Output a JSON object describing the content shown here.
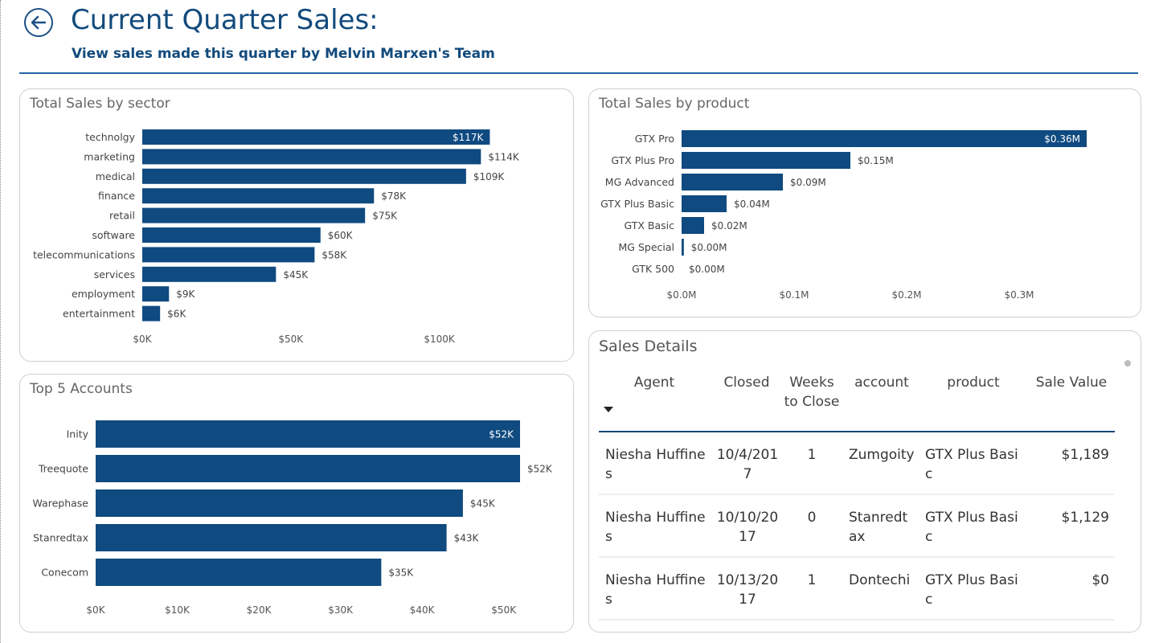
{
  "header": {
    "title": "Current Quarter Sales:",
    "subtitle": "View sales made this quarter by Melvin Marxen's Team"
  },
  "colors": {
    "bar": "#0f4a80",
    "accent": "#1f63a8"
  },
  "sector_card": {
    "title": "Total Sales by sector"
  },
  "product_card": {
    "title": "Total Sales by product"
  },
  "accounts_card": {
    "title": "Top 5 Accounts"
  },
  "details_card": {
    "title": "Sales Details",
    "columns": [
      "Agent",
      "Closed",
      "Weeks to Close",
      "account",
      "product",
      "Sale Value"
    ],
    "rows": [
      [
        "Niesha Huffines",
        "10/4/2017",
        "1",
        "Zumgoity",
        "GTX Plus Basic",
        "$1,189"
      ],
      [
        "Niesha Huffines",
        "10/10/2017",
        "0",
        "Stanredtax",
        "GTX Plus Basic",
        "$1,129"
      ],
      [
        "Niesha Huffines",
        "10/13/2017",
        "1",
        "Dontechi",
        "GTX Plus Basic",
        "$0"
      ]
    ]
  },
  "chart_data": [
    {
      "id": "sector",
      "type": "bar",
      "orientation": "horizontal",
      "categories": [
        "technolgy",
        "marketing",
        "medical",
        "finance",
        "retail",
        "software",
        "telecommunications",
        "services",
        "employment",
        "entertainment"
      ],
      "values": [
        117,
        114,
        109,
        78,
        75,
        60,
        58,
        45,
        9,
        6
      ],
      "labels": [
        "$117K",
        "$114K",
        "$109K",
        "$78K",
        "$75K",
        "$60K",
        "$58K",
        "$45K",
        "$9K",
        "$6K"
      ],
      "ticks": [
        0,
        50,
        100
      ],
      "tick_labels": [
        "$0K",
        "$50K",
        "$100K"
      ],
      "xlim": [
        0,
        125
      ]
    },
    {
      "id": "product",
      "type": "bar",
      "orientation": "horizontal",
      "categories": [
        "GTX Pro",
        "GTX Plus Pro",
        "MG Advanced",
        "GTX Plus Basic",
        "GTX Basic",
        "MG Special",
        "GTK 500"
      ],
      "values": [
        0.36,
        0.15,
        0.09,
        0.04,
        0.02,
        0.002,
        0.0
      ],
      "labels": [
        "$0.36M",
        "$0.15M",
        "$0.09M",
        "$0.04M",
        "$0.02M",
        "$0.00M",
        "$0.00M"
      ],
      "ticks": [
        0,
        0.1,
        0.2,
        0.3
      ],
      "tick_labels": [
        "$0.0M",
        "$0.1M",
        "$0.2M",
        "$0.3M"
      ],
      "xlim": [
        0,
        0.36
      ]
    },
    {
      "id": "accounts",
      "type": "bar",
      "orientation": "horizontal",
      "categories": [
        "Inity",
        "Treequote",
        "Warephase",
        "Stanredtax",
        "Conecom"
      ],
      "values": [
        52,
        52,
        45,
        43,
        35
      ],
      "labels": [
        "$52K",
        "$52K",
        "$45K",
        "$43K",
        "$35K"
      ],
      "ticks": [
        0,
        10,
        20,
        30,
        40,
        50
      ],
      "tick_labels": [
        "$0K",
        "$10K",
        "$20K",
        "$30K",
        "$40K",
        "$50K"
      ],
      "xlim": [
        0,
        52
      ]
    }
  ]
}
